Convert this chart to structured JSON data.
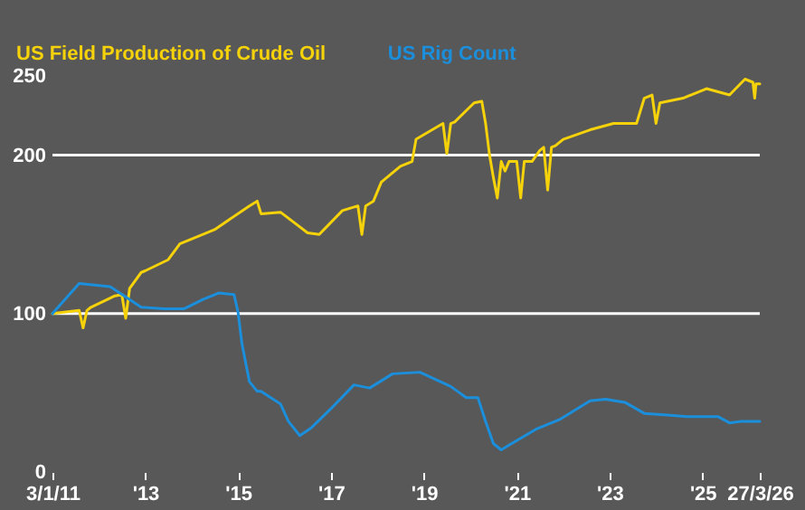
{
  "chart_data": {
    "type": "line",
    "legend": "top",
    "grid": false,
    "line_style": "solid",
    "marker": "none",
    "xlim": [
      "2011-01-03",
      "2026-03-27"
    ],
    "xticks": [
      {
        "value": "2011-01-03",
        "label": "3/1/11"
      },
      {
        "value": "2013-01-01",
        "label": "'13"
      },
      {
        "value": "2015-01-01",
        "label": "'15"
      },
      {
        "value": "2017-01-01",
        "label": "'17"
      },
      {
        "value": "2019-01-01",
        "label": "'19"
      },
      {
        "value": "2021-01-01",
        "label": "'21"
      },
      {
        "value": "2023-01-01",
        "label": "'23"
      },
      {
        "value": "2025-01-01",
        "label": "'25"
      },
      {
        "value": "2026-03-27",
        "label": "27/3/26"
      }
    ],
    "ylim": [
      0,
      250
    ],
    "yticks": [
      0,
      100,
      200,
      250
    ],
    "ref_lines": [
      {
        "axis": "y",
        "value": 100,
        "label": null,
        "color": "#ffffff"
      },
      {
        "axis": "y",
        "value": 200,
        "label": null,
        "color": "#ffffff"
      }
    ],
    "series": [
      {
        "name": "US Field Production of Crude Oil",
        "color": "#f5d20a",
        "x": [
          "2011-01-03",
          "2011-08",
          "2011-09",
          "2011-10",
          "2011-11",
          "2012-05",
          "2012-07",
          "2012-08",
          "2012-09",
          "2012-12",
          "2013-01",
          "2013-07",
          "2013-10",
          "2014-07",
          "2015-04",
          "2015-06",
          "2015-07",
          "2015-12",
          "2016-07",
          "2016-10",
          "2017-04",
          "2017-08",
          "2017-09",
          "2017-10",
          "2017-12",
          "2018-02",
          "2018-07",
          "2018-10",
          "2018-11",
          "2019-06",
          "2019-07",
          "2019-08",
          "2019-09",
          "2020-02",
          "2020-04",
          "2020-05",
          "2020-06",
          "2020-07",
          "2020-08",
          "2020-09",
          "2020-10",
          "2020-11",
          "2021-01",
          "2021-02",
          "2021-03",
          "2021-05",
          "2021-07",
          "2021-08",
          "2021-09",
          "2021-10",
          "2021-11",
          "2022-01",
          "2022-08",
          "2023-02",
          "2023-08",
          "2023-10",
          "2023-12",
          "2024-01",
          "2024-02",
          "2024-08",
          "2025-02",
          "2025-08",
          "2025-12",
          "2026-02",
          "2026-02-15",
          "2026-02-25",
          "2026-03-27"
        ],
        "values": [
          100,
          102,
          91,
          102,
          104,
          111,
          112,
          97,
          116,
          126,
          127,
          134,
          144,
          153,
          168,
          171,
          163,
          164,
          151,
          150,
          165,
          168,
          150,
          168,
          171,
          183,
          193,
          196,
          210,
          220,
          201,
          220,
          221,
          233,
          234,
          220,
          200,
          186,
          173,
          196,
          190,
          196,
          196,
          173,
          196,
          196,
          203,
          205,
          178,
          205,
          206,
          210,
          216,
          220,
          220,
          236,
          238,
          220,
          233,
          236,
          242,
          238,
          248,
          246,
          236,
          245,
          245
        ]
      },
      {
        "name": "US Rig Count",
        "color": "#1b8fdc",
        "x": [
          "2011-01-03",
          "2011-08",
          "2012-04",
          "2012-12",
          "2013-06",
          "2013-11",
          "2014-04",
          "2014-08",
          "2014-12",
          "2015-01",
          "2015-02",
          "2015-04",
          "2015-06",
          "2015-07",
          "2015-12",
          "2016-02",
          "2016-05",
          "2016-08",
          "2017-01",
          "2017-07",
          "2017-11",
          "2018-05",
          "2018-12",
          "2019-08",
          "2019-12",
          "2020-03",
          "2020-05",
          "2020-07",
          "2020-09",
          "2020-11",
          "2021-06",
          "2021-12",
          "2022-08",
          "2022-12",
          "2023-05",
          "2023-10",
          "2024-04",
          "2024-09",
          "2025-05",
          "2025-08",
          "2025-11",
          "2026-03-27"
        ],
        "values": [
          100,
          119,
          117,
          104,
          103,
          103,
          109,
          113,
          112,
          101,
          81,
          57,
          51,
          51,
          43,
          32,
          23,
          28,
          40,
          55,
          53,
          62,
          63,
          54,
          47,
          47,
          32,
          18,
          14,
          17,
          27,
          33,
          45,
          46,
          44,
          37,
          36,
          35,
          35,
          31,
          32,
          32
        ]
      }
    ]
  }
}
